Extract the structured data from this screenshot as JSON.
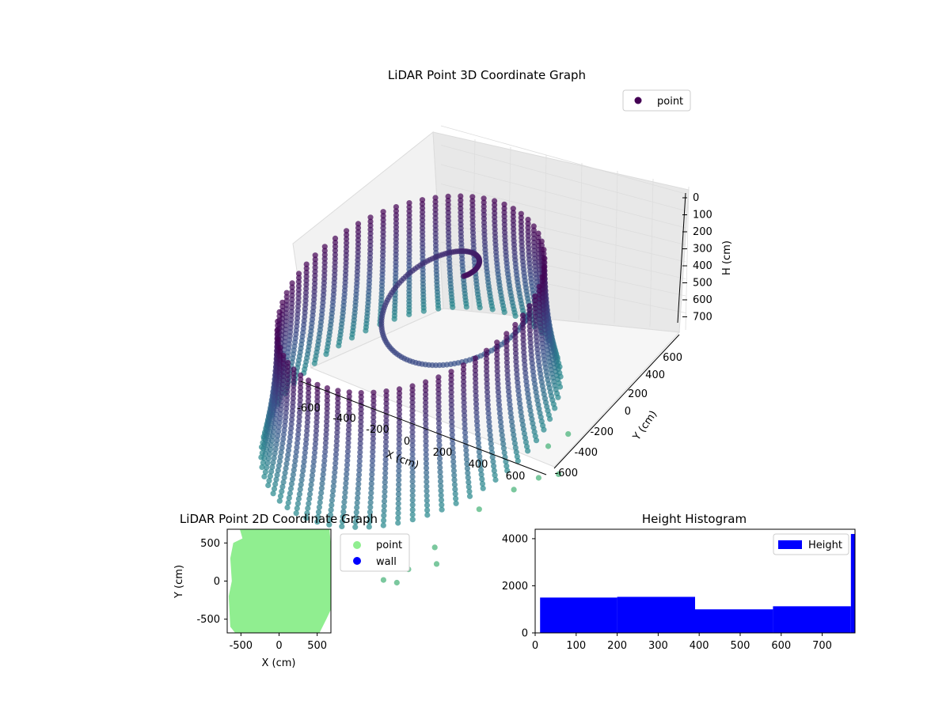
{
  "chart_data": [
    {
      "type": "scatter3d",
      "title": "LiDAR Point 3D Coordinate Graph",
      "xlabel": "X (cm)",
      "ylabel": "Y (cm)",
      "zlabel": "H (cm)",
      "xticks": [
        -600,
        -400,
        -200,
        0,
        200,
        400,
        600
      ],
      "yticks": [
        -600,
        -400,
        -200,
        0,
        200,
        400,
        600
      ],
      "zticks": [
        0,
        100,
        200,
        300,
        400,
        500,
        600,
        700
      ],
      "xlim": [
        -700,
        700
      ],
      "ylim": [
        -700,
        700
      ],
      "zlim": [
        0,
        780
      ],
      "zaxis_inverted": true,
      "legend": [
        "point"
      ],
      "legend_position": "top-right",
      "colormap": "viridis",
      "colors": {
        "top": "#440154",
        "mid": "#31688e",
        "low": "#26828e",
        "outlier": "#6ccd5a"
      },
      "grid": true
    },
    {
      "type": "scatter",
      "title": "LiDAR Point 2D Coordinate Graph",
      "xlabel": "X (cm)",
      "ylabel": "Y (cm)",
      "xticks": [
        -500,
        0,
        500
      ],
      "yticks": [
        -500,
        0,
        500
      ],
      "xlim": [
        -680,
        680
      ],
      "ylim": [
        -680,
        680
      ],
      "legend": [
        "point",
        "wall"
      ],
      "legend_position": "outside-right",
      "series": [
        {
          "name": "point",
          "color": "#90ee90"
        },
        {
          "name": "wall",
          "color": "#0000ff"
        }
      ]
    },
    {
      "type": "bar",
      "title": "Height Histogram",
      "xticks": [
        0,
        100,
        200,
        300,
        400,
        500,
        600,
        700
      ],
      "yticks": [
        0,
        2000,
        4000
      ],
      "xlim": [
        0,
        780
      ],
      "ylim": [
        0,
        4400
      ],
      "legend": [
        "Height"
      ],
      "legend_position": "top-right",
      "color": "#0000ff",
      "bins": [
        {
          "x0": 12,
          "x1": 200,
          "value": 1500
        },
        {
          "x0": 200,
          "x1": 390,
          "value": 1530
        },
        {
          "x0": 390,
          "x1": 580,
          "value": 1000
        },
        {
          "x0": 580,
          "x1": 770,
          "value": 1130
        },
        {
          "x0": 770,
          "x1": 780,
          "value": 4200
        }
      ]
    }
  ]
}
